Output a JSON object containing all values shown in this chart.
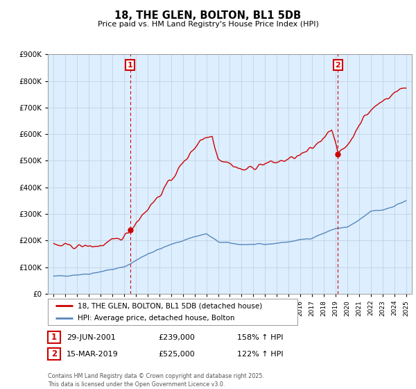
{
  "title": "18, THE GLEN, BOLTON, BL1 5DB",
  "subtitle": "Price paid vs. HM Land Registry's House Price Index (HPI)",
  "legend_line1": "18, THE GLEN, BOLTON, BL1 5DB (detached house)",
  "legend_line2": "HPI: Average price, detached house, Bolton",
  "annotation1_date": "29-JUN-2001",
  "annotation1_price": "£239,000",
  "annotation1_hpi": "158% ↑ HPI",
  "annotation2_date": "15-MAR-2019",
  "annotation2_price": "£525,000",
  "annotation2_hpi": "122% ↑ HPI",
  "footer": "Contains HM Land Registry data © Crown copyright and database right 2025.\nThis data is licensed under the Open Government Licence v3.0.",
  "vline1_x": 2001.5,
  "vline2_x": 2019.2,
  "sale1_x": 2001.5,
  "sale1_y": 239000,
  "sale2_x": 2019.2,
  "sale2_y": 525000,
  "ylim": [
    0,
    900000
  ],
  "xlim": [
    1994.5,
    2025.5
  ],
  "red_color": "#cc0000",
  "blue_color": "#5588bb",
  "chart_bg": "#ddeeff",
  "vline_color": "#cc0000",
  "background_color": "#ffffff",
  "grid_color": "#bbccdd"
}
